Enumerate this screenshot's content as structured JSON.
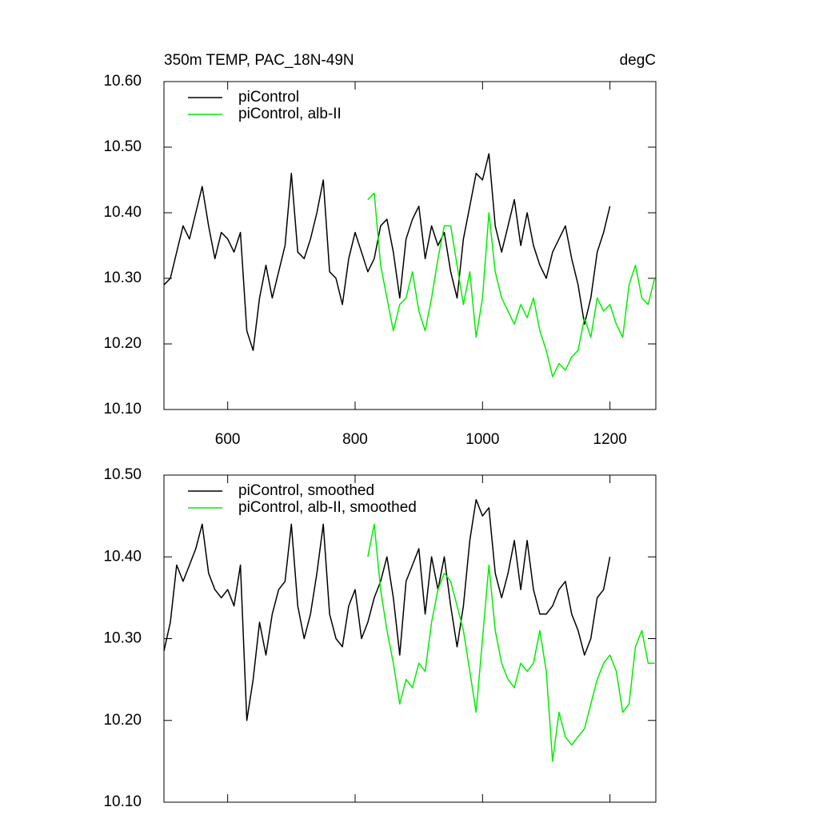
{
  "chart_data": [
    {
      "type": "line",
      "title": "350m TEMP, PAC_18N-49N",
      "right_title": "degC",
      "xlim": [
        500,
        1272
      ],
      "xticks": [
        600,
        800,
        1000,
        1200
      ],
      "ylim": [
        10.1,
        10.6
      ],
      "yticks": [
        {
          "value": 10.1,
          "label": "10.10"
        },
        {
          "value": 10.2,
          "label": "10.20"
        },
        {
          "value": 10.3,
          "label": "10.30"
        },
        {
          "value": 10.4,
          "label": "10.40"
        },
        {
          "value": 10.5,
          "label": "10.50"
        },
        {
          "value": 10.6,
          "label": "10.60"
        }
      ],
      "legend": "upper left",
      "series": [
        {
          "name": "piControl",
          "color": "#000000",
          "x": [
            500,
            510,
            520,
            530,
            540,
            550,
            560,
            570,
            580,
            590,
            600,
            610,
            620,
            630,
            640,
            650,
            660,
            670,
            680,
            690,
            700,
            710,
            720,
            730,
            740,
            750,
            760,
            770,
            780,
            790,
            800,
            810,
            820,
            830,
            840,
            850,
            860,
            870,
            880,
            890,
            900,
            910,
            920,
            930,
            940,
            950,
            960,
            970,
            980,
            990,
            1000,
            1010,
            1020,
            1030,
            1040,
            1050,
            1060,
            1070,
            1080,
            1090,
            1100,
            1110,
            1120,
            1130,
            1140,
            1150,
            1160,
            1170,
            1180,
            1190,
            1200
          ],
          "values": [
            10.29,
            10.3,
            10.34,
            10.38,
            10.36,
            10.4,
            10.44,
            10.38,
            10.33,
            10.37,
            10.36,
            10.34,
            10.37,
            10.22,
            10.19,
            10.27,
            10.32,
            10.27,
            10.31,
            10.35,
            10.46,
            10.34,
            10.33,
            10.36,
            10.4,
            10.45,
            10.31,
            10.3,
            10.26,
            10.33,
            10.37,
            10.34,
            10.31,
            10.33,
            10.38,
            10.39,
            10.34,
            10.27,
            10.36,
            10.39,
            10.41,
            10.33,
            10.38,
            10.35,
            10.37,
            10.31,
            10.27,
            10.36,
            10.41,
            10.46,
            10.45,
            10.49,
            10.38,
            10.34,
            10.38,
            10.42,
            10.35,
            10.4,
            10.35,
            10.32,
            10.3,
            10.34,
            10.36,
            10.38,
            10.33,
            10.29,
            10.23,
            10.27,
            10.34,
            10.37,
            10.41
          ]
        },
        {
          "name": "piControl, alb-II",
          "color": "#00ee00",
          "x": [
            820,
            830,
            840,
            850,
            860,
            870,
            880,
            890,
            900,
            910,
            920,
            930,
            940,
            950,
            960,
            970,
            980,
            990,
            1000,
            1010,
            1020,
            1030,
            1040,
            1050,
            1060,
            1070,
            1080,
            1090,
            1100,
            1110,
            1120,
            1130,
            1140,
            1150,
            1160,
            1170,
            1180,
            1190,
            1200,
            1210,
            1220,
            1230,
            1240,
            1250,
            1260,
            1270
          ],
          "values": [
            10.42,
            10.43,
            10.32,
            10.27,
            10.22,
            10.26,
            10.27,
            10.31,
            10.25,
            10.22,
            10.27,
            10.33,
            10.38,
            10.38,
            10.32,
            10.26,
            10.31,
            10.21,
            10.27,
            10.4,
            10.31,
            10.27,
            10.25,
            10.23,
            10.26,
            10.24,
            10.27,
            10.22,
            10.19,
            10.15,
            10.17,
            10.16,
            10.18,
            10.19,
            10.24,
            10.21,
            10.27,
            10.25,
            10.26,
            10.23,
            10.21,
            10.29,
            10.32,
            10.27,
            10.26,
            10.3
          ]
        }
      ]
    },
    {
      "type": "line",
      "xlim": [
        500,
        1272
      ],
      "xticks": [
        600,
        800,
        1000,
        1200
      ],
      "ylim": [
        10.1,
        10.5
      ],
      "yticks": [
        {
          "value": 10.1,
          "label": "10.10"
        },
        {
          "value": 10.2,
          "label": "10.20"
        },
        {
          "value": 10.3,
          "label": "10.30"
        },
        {
          "value": 10.4,
          "label": "10.40"
        },
        {
          "value": 10.5,
          "label": "10.50"
        }
      ],
      "legend": "upper left",
      "series": [
        {
          "name": "piControl, smoothed",
          "color": "#000000",
          "x": [
            500,
            510,
            520,
            530,
            540,
            550,
            560,
            570,
            580,
            590,
            600,
            610,
            620,
            630,
            640,
            650,
            660,
            670,
            680,
            690,
            700,
            710,
            720,
            730,
            740,
            750,
            760,
            770,
            780,
            790,
            800,
            810,
            820,
            830,
            840,
            850,
            860,
            870,
            880,
            890,
            900,
            910,
            920,
            930,
            940,
            950,
            960,
            970,
            980,
            990,
            1000,
            1010,
            1020,
            1030,
            1040,
            1050,
            1060,
            1070,
            1080,
            1090,
            1100,
            1110,
            1120,
            1130,
            1140,
            1150,
            1160,
            1170,
            1180,
            1190,
            1200
          ],
          "values": [
            10.285,
            10.32,
            10.39,
            10.37,
            10.39,
            10.41,
            10.44,
            10.38,
            10.36,
            10.35,
            10.36,
            10.34,
            10.39,
            10.2,
            10.25,
            10.32,
            10.28,
            10.33,
            10.36,
            10.37,
            10.44,
            10.34,
            10.3,
            10.33,
            10.38,
            10.44,
            10.33,
            10.3,
            10.29,
            10.34,
            10.36,
            10.3,
            10.32,
            10.35,
            10.37,
            10.4,
            10.35,
            10.28,
            10.37,
            10.39,
            10.41,
            10.33,
            10.4,
            10.36,
            10.4,
            10.34,
            10.29,
            10.34,
            10.42,
            10.47,
            10.45,
            10.46,
            10.38,
            10.35,
            10.38,
            10.42,
            10.36,
            10.42,
            10.36,
            10.33,
            10.33,
            10.34,
            10.36,
            10.37,
            10.33,
            10.31,
            10.28,
            10.3,
            10.35,
            10.36,
            10.4
          ]
        },
        {
          "name": "piControl, alb-II, smoothed",
          "color": "#00ee00",
          "x": [
            820,
            830,
            840,
            850,
            860,
            870,
            880,
            890,
            900,
            910,
            920,
            930,
            940,
            950,
            960,
            970,
            980,
            990,
            1000,
            1010,
            1020,
            1030,
            1040,
            1050,
            1060,
            1070,
            1080,
            1090,
            1100,
            1110,
            1120,
            1130,
            1140,
            1150,
            1160,
            1170,
            1180,
            1190,
            1200,
            1210,
            1220,
            1230,
            1240,
            1250,
            1260,
            1270
          ],
          "values": [
            10.4,
            10.44,
            10.36,
            10.31,
            10.27,
            10.22,
            10.25,
            10.24,
            10.27,
            10.26,
            10.32,
            10.36,
            10.38,
            10.37,
            10.34,
            10.31,
            10.26,
            10.21,
            10.3,
            10.39,
            10.31,
            10.27,
            10.25,
            10.24,
            10.27,
            10.26,
            10.27,
            10.31,
            10.26,
            10.15,
            10.21,
            10.18,
            10.17,
            10.18,
            10.19,
            10.22,
            10.25,
            10.27,
            10.28,
            10.26,
            10.21,
            10.22,
            10.29,
            10.31,
            10.27,
            10.27
          ]
        }
      ]
    }
  ]
}
